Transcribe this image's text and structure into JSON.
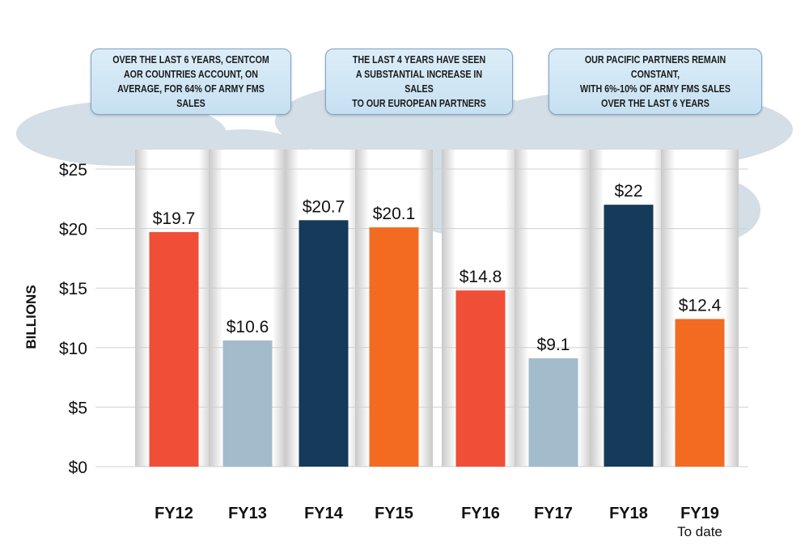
{
  "callouts": [
    "OVER THE LAST 6 YEARS, CENTCOM\nAOR COUNTRIES ACCOUNT, ON\nAVERAGE, FOR 64% OF ARMY FMS SALES",
    "THE LAST 4 YEARS HAVE SEEN\nA SUBSTANTIAL INCREASE IN SALES\nTO OUR EUROPEAN PARTNERS",
    "OUR PACIFIC PARTNERS REMAIN CONSTANT,\nWITH 6%-10% OF ARMY FMS SALES\nOVER THE LAST 6 YEARS"
  ],
  "chart_data": {
    "type": "bar",
    "ylabel": "BILLIONS",
    "ylim": [
      0,
      25
    ],
    "yticks": [
      "$0",
      "$5",
      "$10",
      "$15",
      "$20",
      "$25"
    ],
    "grid": true,
    "categories": [
      "FY12",
      "FY13",
      "FY14",
      "FY15",
      "FY16",
      "FY17",
      "FY18",
      "FY19"
    ],
    "category_sublabels": [
      "",
      "",
      "",
      "",
      "",
      "",
      "",
      "To date"
    ],
    "values": [
      19.7,
      10.6,
      20.7,
      20.1,
      14.8,
      9.1,
      22,
      12.4
    ],
    "data_labels": [
      "$19.7",
      "$10.6",
      "$20.7",
      "$20.1",
      "$14.8",
      "$9.1",
      "$22",
      "$12.4"
    ],
    "colors": [
      "#f04e37",
      "#a3bccc",
      "#163a59",
      "#f26b21",
      "#f04e37",
      "#a3bccc",
      "#163a59",
      "#f26b21"
    ]
  }
}
